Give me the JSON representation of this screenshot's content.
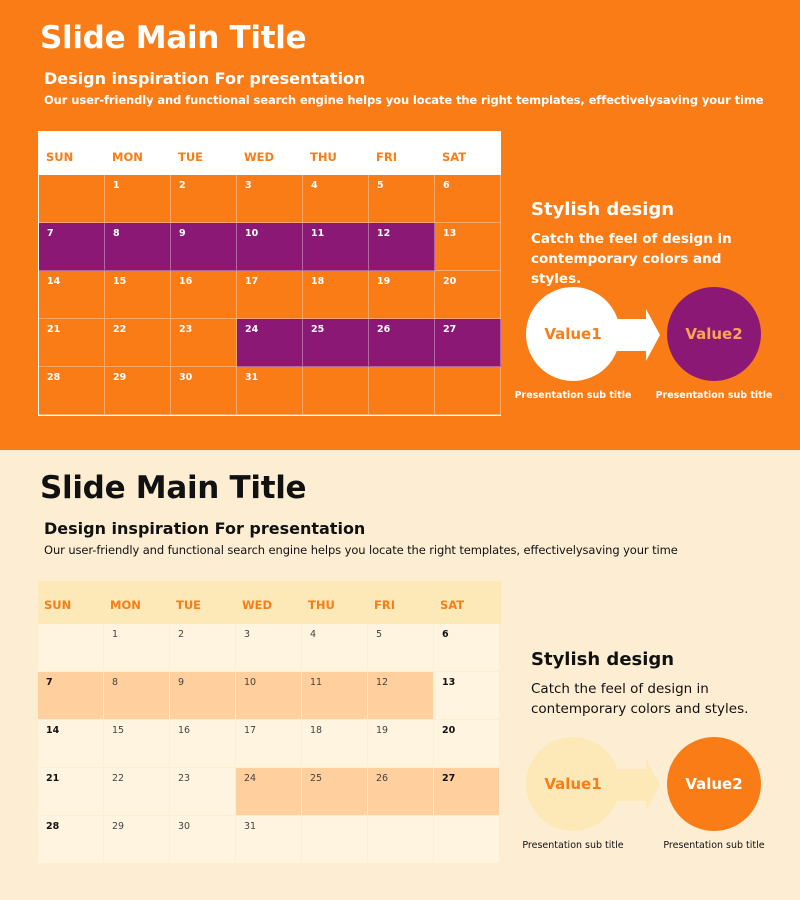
{
  "slides": [
    {
      "title": "Slide Main Title",
      "subtitle": "Design inspiration For presentation",
      "description": "Our user-friendly and functional search engine helps you locate the right templates, effectivelysaving your time",
      "calendar": {
        "days": [
          "SUN",
          "MON",
          "TUE",
          "WED",
          "THU",
          "FRI",
          "SAT"
        ],
        "cells": [
          "",
          "1",
          "2",
          "3",
          "4",
          "5",
          "6",
          "7",
          "8",
          "9",
          "10",
          "11",
          "12",
          "13",
          "14",
          "15",
          "16",
          "17",
          "18",
          "19",
          "20",
          "21",
          "22",
          "23",
          "24",
          "25",
          "26",
          "27",
          "28",
          "29",
          "30",
          "31",
          "",
          "",
          ""
        ],
        "highlighted": [
          "7",
          "8",
          "9",
          "10",
          "11",
          "12",
          "24",
          "25",
          "26",
          "27"
        ]
      },
      "stylish_title": "Stylish design",
      "stylish_text": "Catch the feel of design in contemporary colors and styles.",
      "value1": "Value1",
      "value2": "Value2",
      "sub1": "Presentation sub title",
      "sub2": "Presentation sub title",
      "colors": {
        "background": "#f97c17",
        "accent": "#8b1874"
      }
    },
    {
      "title": "Slide Main Title",
      "subtitle": "Design inspiration For presentation",
      "description": "Our user-friendly and functional search engine helps you locate the right templates, effectivelysaving your time",
      "calendar": {
        "days": [
          "SUN",
          "MON",
          "TUE",
          "WED",
          "THU",
          "FRI",
          "SAT"
        ],
        "cells": [
          "",
          "1",
          "2",
          "3",
          "4",
          "5",
          "6",
          "7",
          "8",
          "9",
          "10",
          "11",
          "12",
          "13",
          "14",
          "15",
          "16",
          "17",
          "18",
          "19",
          "20",
          "21",
          "22",
          "23",
          "24",
          "25",
          "26",
          "27",
          "28",
          "29",
          "30",
          "31",
          "",
          "",
          ""
        ],
        "highlighted": [
          "7",
          "8",
          "9",
          "10",
          "11",
          "12",
          "24",
          "25",
          "26",
          "27"
        ]
      },
      "stylish_title": "Stylish design",
      "stylish_text": "Catch the feel of design in contemporary colors and styles.",
      "value1": "Value1",
      "value2": "Value2",
      "sub1": "Presentation sub title",
      "sub2": "Presentation sub title",
      "colors": {
        "background": "#fdeed3",
        "accent": "#ffcf9e"
      }
    }
  ]
}
